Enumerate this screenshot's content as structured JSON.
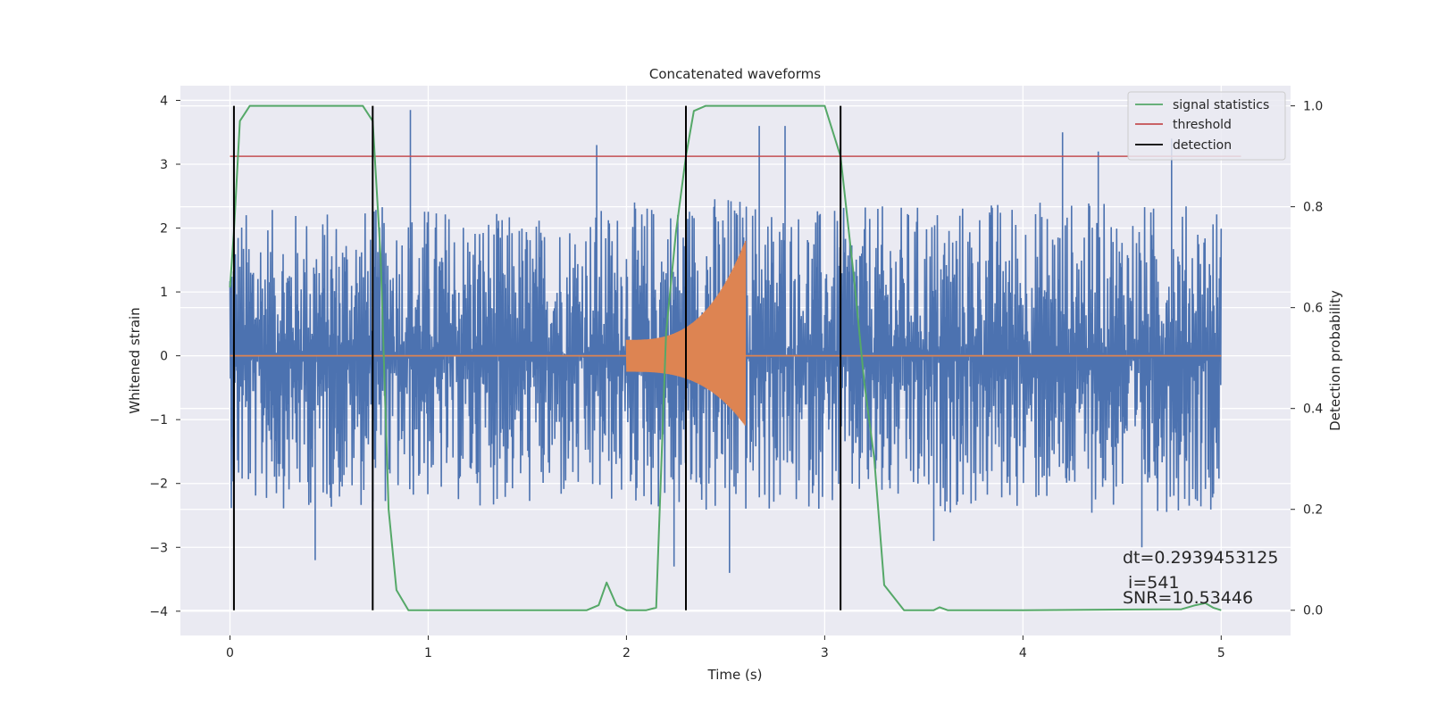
{
  "chart_data": {
    "type": "line",
    "title": "Concatenated waveforms",
    "xlabel": "Time (s)",
    "ylabel": "Whitened strain",
    "ylabel_right": "Detection probability",
    "xlim": [
      -0.25,
      5.35
    ],
    "ylim": [
      -4.38,
      4.23
    ],
    "ylim_right": [
      -0.05,
      1.04
    ],
    "xticks": [
      0,
      1,
      2,
      3,
      4,
      5
    ],
    "yticks": [
      -4,
      -3,
      -2,
      -1,
      0,
      1,
      2,
      3,
      4
    ],
    "yticks_right": [
      0.0,
      0.2,
      0.4,
      0.6,
      0.8,
      1.0
    ],
    "xtick_labels": [
      "0",
      "1",
      "2",
      "3",
      "4",
      "5"
    ],
    "ytick_labels": [
      "−4",
      "−3",
      "−2",
      "−1",
      "0",
      "1",
      "2",
      "3",
      "4"
    ],
    "ytick_right_labels": [
      "0.0",
      "0.2",
      "0.4",
      "0.6",
      "0.8",
      "1.0"
    ],
    "grid": true,
    "legend_position": "top-right",
    "legend": [
      {
        "label": "signal statistics",
        "color": "#55a868"
      },
      {
        "label": "threshold",
        "color": "#c44e52"
      },
      {
        "label": "detection",
        "color": "#000000"
      }
    ],
    "colors": {
      "strain": "#4c72b0",
      "template": "#dd8452",
      "statistic": "#55a868",
      "threshold": "#c44e52",
      "detection": "#000000",
      "plot_background": "#eaeaf2"
    },
    "series": [
      {
        "name": "signal statistics",
        "axis": "right",
        "x": [
          0.0,
          0.02,
          0.05,
          0.1,
          0.2,
          0.6,
          0.67,
          0.72,
          0.76,
          0.8,
          0.84,
          0.9,
          1.5,
          1.8,
          1.86,
          1.9,
          1.95,
          2.0,
          2.1,
          2.15,
          2.2,
          2.25,
          2.3,
          2.34,
          2.4,
          2.5,
          2.9,
          3.0,
          3.08,
          3.15,
          3.2,
          3.25,
          3.3,
          3.4,
          3.55,
          3.58,
          3.62,
          4.0,
          4.8,
          4.87,
          4.92,
          4.96,
          5.0
        ],
        "y": [
          0.64,
          0.75,
          0.97,
          1.0,
          1.0,
          1.0,
          1.0,
          0.97,
          0.7,
          0.2,
          0.04,
          0.0,
          0.0,
          0.0,
          0.01,
          0.055,
          0.01,
          0.0,
          0.0,
          0.005,
          0.55,
          0.75,
          0.9,
          0.99,
          1.0,
          1.0,
          1.0,
          1.0,
          0.9,
          0.65,
          0.45,
          0.3,
          0.05,
          0.0,
          0.0,
          0.006,
          0.0,
          0.0,
          0.002,
          0.01,
          0.014,
          0.005,
          0.0
        ]
      },
      {
        "name": "threshold",
        "axis": "right",
        "x": [
          0.0,
          5.1
        ],
        "y": [
          0.9,
          0.9
        ]
      }
    ],
    "strain_envelope": {
      "x": [
        0.0,
        0.5,
        1.0,
        1.5,
        2.0,
        2.5,
        3.0,
        3.5,
        4.0,
        4.5,
        5.0
      ],
      "upper": [
        2.3,
        2.3,
        2.4,
        2.2,
        2.4,
        2.6,
        2.3,
        2.4,
        2.5,
        2.4,
        2.4
      ],
      "lower": [
        -2.4,
        -2.4,
        -2.3,
        -2.4,
        -2.4,
        -2.6,
        -2.4,
        -2.5,
        -2.4,
        -2.5,
        -2.4
      ],
      "spikes": [
        {
          "x": 0.91,
          "y": 3.85
        },
        {
          "x": 1.85,
          "y": 3.3
        },
        {
          "x": 2.24,
          "y": -3.3
        },
        {
          "x": 2.52,
          "y": -3.4
        },
        {
          "x": 2.67,
          "y": 3.6
        },
        {
          "x": 2.8,
          "y": 3.6
        },
        {
          "x": 4.2,
          "y": 3.5
        },
        {
          "x": 4.38,
          "y": 3.2
        },
        {
          "x": 4.75,
          "y": 3.4
        },
        {
          "x": 4.6,
          "y": -3.0
        },
        {
          "x": 0.43,
          "y": -3.2
        },
        {
          "x": 3.55,
          "y": -2.9
        }
      ]
    },
    "template_chirp": {
      "x_start": 2.0,
      "x_end": 2.6,
      "amp_upper": [
        0.25,
        1.8
      ],
      "amp_lower": [
        -0.25,
        -1.1
      ]
    },
    "detections": [
      0.02,
      0.72,
      2.3,
      3.08
    ],
    "annotations": [
      "dt=0.2939453125",
      " i=541",
      "SNR=10.53446"
    ]
  }
}
